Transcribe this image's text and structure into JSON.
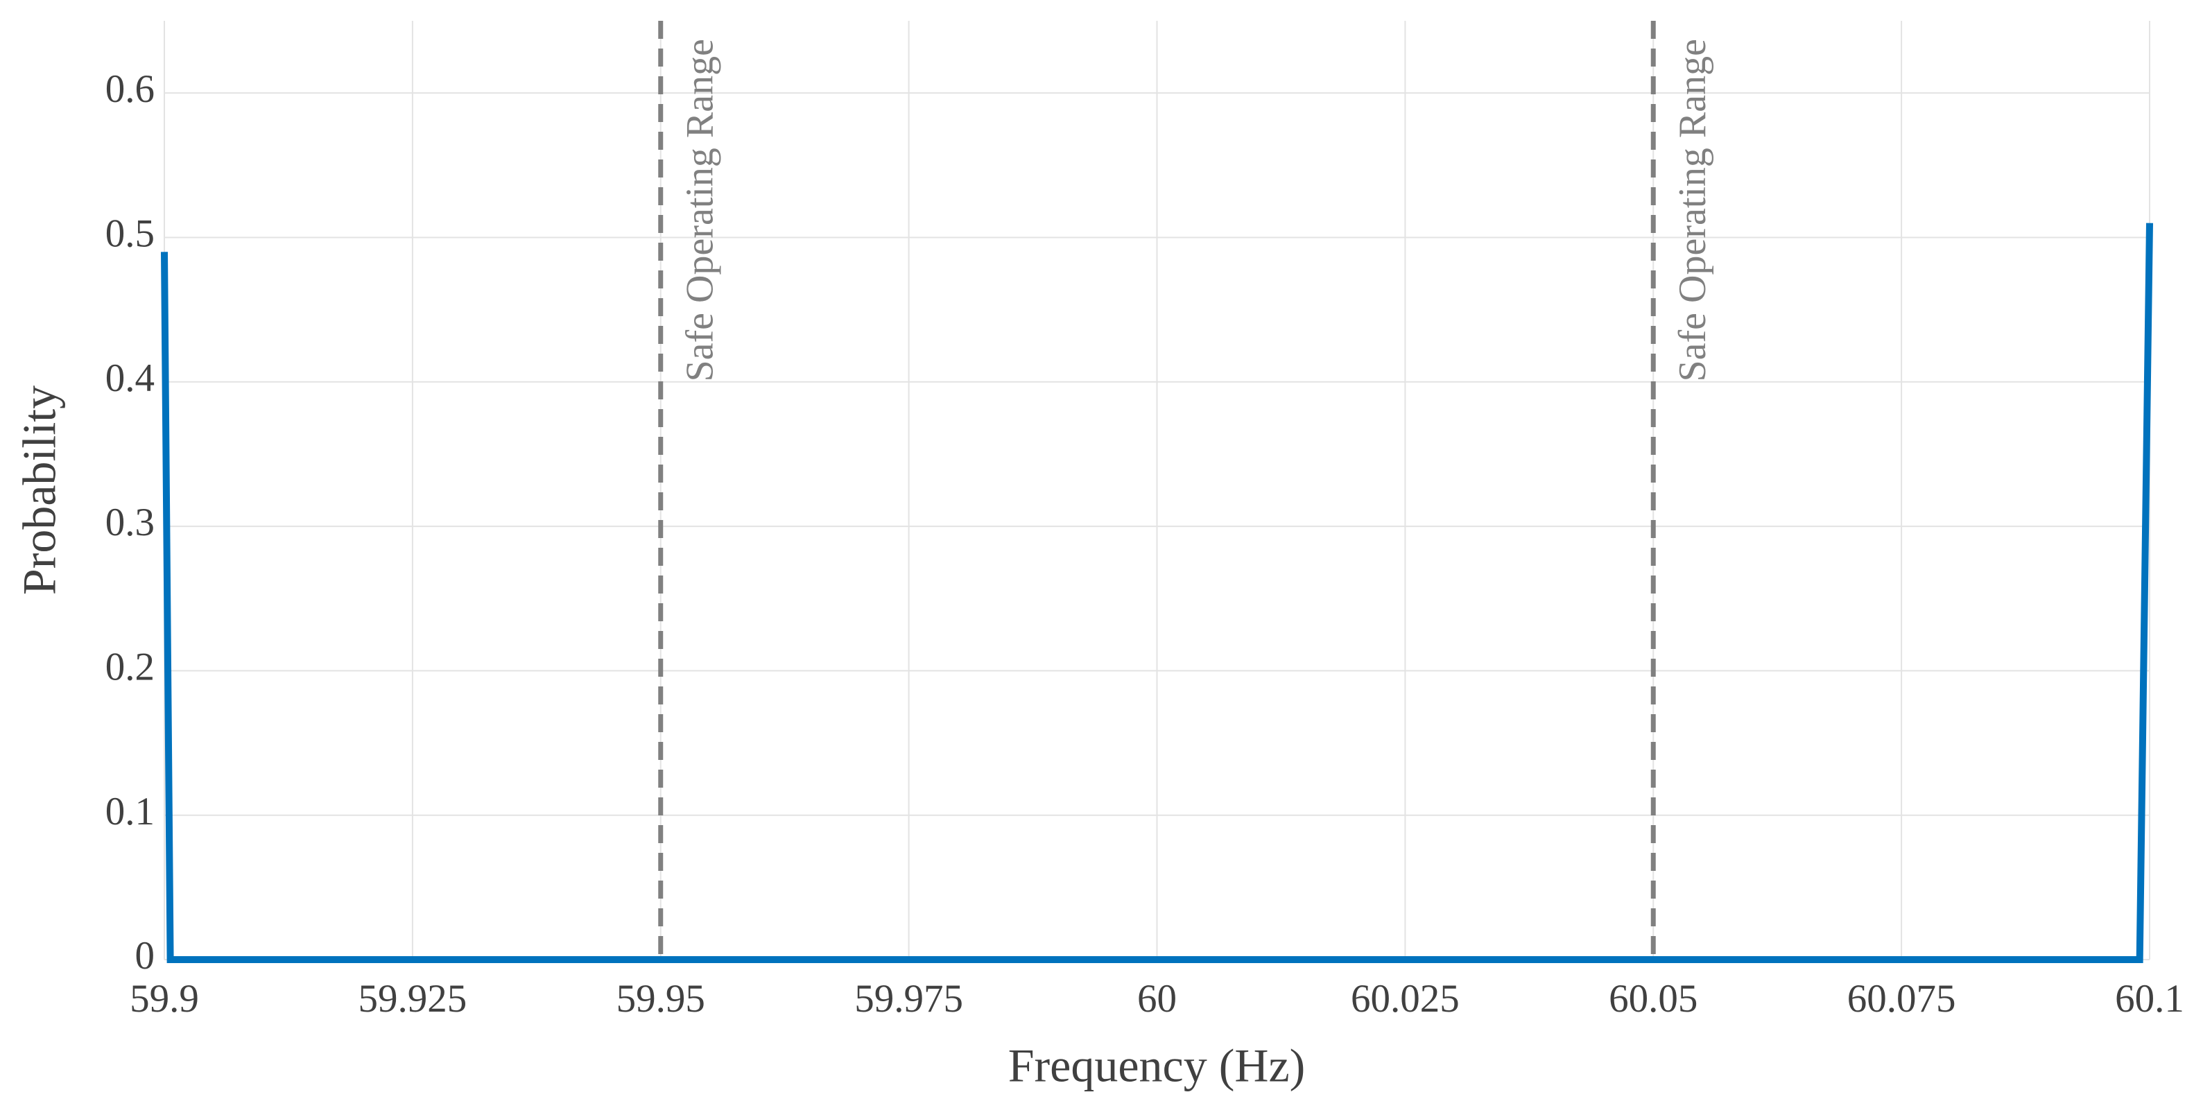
{
  "chart_data": {
    "type": "line",
    "xlabel": "Frequency (Hz)",
    "ylabel": "Probability",
    "x": [
      59.9,
      59.9006,
      60.099,
      60.1
    ],
    "series": [
      {
        "color": "#0072bd",
        "values": [
          0.49,
          0,
          0,
          0.51
        ]
      }
    ],
    "xlim": [
      59.9,
      60.1
    ],
    "xticks": [
      59.9,
      59.925,
      59.95,
      59.975,
      60,
      60.025,
      60.05,
      60.075,
      60.1
    ],
    "ylim": [
      0,
      0.65
    ],
    "yticks": [
      0,
      0.1,
      0.2,
      0.3,
      0.4,
      0.5,
      0.6
    ],
    "grid": true,
    "annotations": [
      {
        "x": 59.95,
        "text": "Safe Operating Range",
        "color": "#808080"
      },
      {
        "x": 60.05,
        "text": "Safe Operating Range",
        "color": "#808080"
      }
    ]
  }
}
